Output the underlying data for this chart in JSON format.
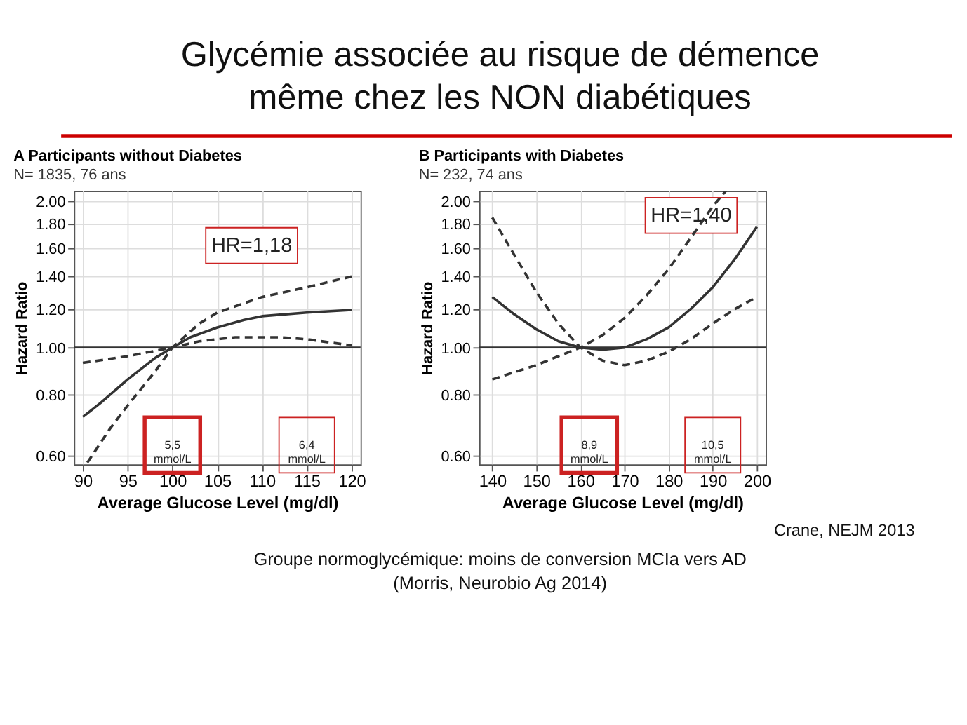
{
  "chart_data": [
    {
      "type": "line",
      "title": "A  Participants without Diabetes",
      "subtitle": "N= 1835, 76 ans",
      "xlabel": "Average Glucose Level (mg/dl)",
      "ylabel": "Hazard Ratio",
      "log": "y",
      "grid": true,
      "xlim": [
        89,
        121
      ],
      "xticks": [
        90,
        95,
        100,
        105,
        110,
        115,
        120
      ],
      "ylim": [
        0.575,
        2.1
      ],
      "yticks": [
        {
          "value": 0.6,
          "label": "0.60"
        },
        {
          "value": 0.8,
          "label": "0.80"
        },
        {
          "value": 1.0,
          "label": "1.00"
        },
        {
          "value": 1.2,
          "label": "1.20"
        },
        {
          "value": 1.4,
          "label": "1.40"
        },
        {
          "value": 1.6,
          "label": "1.60"
        },
        {
          "value": 1.8,
          "label": "1.80"
        },
        {
          "value": 2.0,
          "label": "2.00"
        }
      ],
      "ref_lines": [
        {
          "axis": "y",
          "value": 1.0,
          "color": "#333333"
        }
      ],
      "series": [
        {
          "color": "#333333",
          "line_style": "solid",
          "x": [
            90,
            92,
            95,
            98,
            100,
            102,
            105,
            108,
            110,
            115,
            120
          ],
          "values": [
            0.72,
            0.77,
            0.86,
            0.95,
            1.0,
            1.05,
            1.1,
            1.14,
            1.16,
            1.18,
            1.195
          ]
        },
        {
          "color": "#333333",
          "line_style": "dashed",
          "x": [
            90,
            95,
            100,
            103,
            105,
            110,
            115,
            120
          ],
          "values": [
            0.93,
            0.96,
            1.0,
            1.12,
            1.18,
            1.27,
            1.33,
            1.4
          ]
        },
        {
          "color": "#333333",
          "line_style": "dashed",
          "x": [
            90.5,
            93,
            95,
            98,
            100,
            103,
            107,
            112,
            115,
            120
          ],
          "values": [
            0.58,
            0.68,
            0.76,
            0.89,
            1.0,
            1.03,
            1.05,
            1.05,
            1.04,
            1.01
          ]
        }
      ],
      "annotations": [
        "HR=1,18",
        "Glycémie associée au risque de démence\nmême chez les NON diabétiques",
        {
          "text": "5,5\nmmol/L",
          "x": 100,
          "y": 0.63
        },
        {
          "text": "6,4\nmmol/L",
          "x": 115,
          "y": 0.63
        },
        "Groupe normoglycémique: moins de conversion MCIa vers AD",
        "(Morris, Neurobio Ag 2014)"
      ]
    },
    {
      "type": "line",
      "title": "B  Participants with Diabetes",
      "subtitle": "N= 232, 74 ans",
      "xlabel": "Average Glucose Level (mg/dl)",
      "ylabel": "Hazard Ratio",
      "log": "y",
      "grid": true,
      "xlim": [
        137,
        202
      ],
      "xticks": [
        140,
        150,
        160,
        170,
        180,
        190,
        200
      ],
      "ylim": [
        0.575,
        2.1
      ],
      "yticks": [
        {
          "value": 0.6,
          "label": "0.60"
        },
        {
          "value": 0.8,
          "label": "0.80"
        },
        {
          "value": 1.0,
          "label": "1.00"
        },
        {
          "value": 1.2,
          "label": "1.20"
        },
        {
          "value": 1.4,
          "label": "1.40"
        },
        {
          "value": 1.6,
          "label": "1.60"
        },
        {
          "value": 1.8,
          "label": "1.80"
        },
        {
          "value": 2.0,
          "label": "2.00"
        }
      ],
      "ref_lines": [
        {
          "axis": "y",
          "value": 1.0,
          "color": "#333333"
        }
      ],
      "series": [
        {
          "color": "#333333",
          "line_style": "solid",
          "x": [
            140,
            145,
            150,
            155,
            160,
            165,
            170,
            175,
            180,
            185,
            190,
            195,
            200
          ],
          "values": [
            1.27,
            1.17,
            1.09,
            1.03,
            1.0,
            0.99,
            1.0,
            1.04,
            1.1,
            1.2,
            1.33,
            1.52,
            1.77
          ]
        },
        {
          "color": "#333333",
          "line_style": "dashed",
          "x": [
            140,
            145,
            150,
            155,
            160,
            165,
            170,
            175,
            180,
            185,
            190,
            195,
            200
          ],
          "values": [
            1.85,
            1.55,
            1.3,
            1.12,
            1.0,
            0.94,
            0.92,
            0.94,
            0.98,
            1.04,
            1.12,
            1.2,
            1.27
          ]
        },
        {
          "color": "#333333",
          "line_style": "dashed",
          "x": [
            140,
            145,
            150,
            155,
            160,
            165,
            170,
            175,
            180,
            185,
            190,
            193
          ],
          "values": [
            0.86,
            0.89,
            0.92,
            0.96,
            1.0,
            1.06,
            1.15,
            1.28,
            1.45,
            1.68,
            1.95,
            2.1
          ]
        }
      ],
      "annotations": [
        "HR=1,40",
        {
          "text": "8,9\nmmol/L",
          "x": 162,
          "y": 0.63
        },
        {
          "text": "10,5\nmmol/L",
          "x": 190,
          "y": 0.63
        },
        "Crane, NEJM 2013"
      ]
    }
  ]
}
